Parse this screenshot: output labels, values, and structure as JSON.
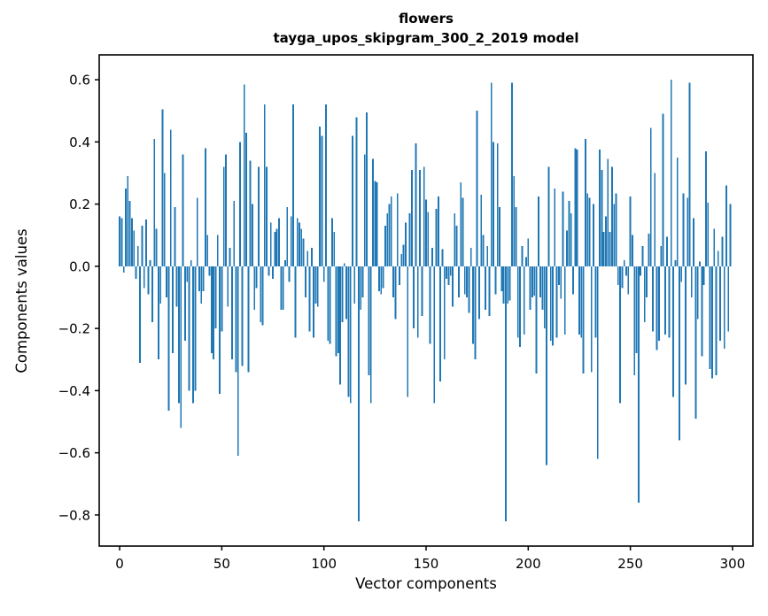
{
  "figure": {
    "background": "#ffffff",
    "axes_color": "#000000"
  },
  "chart_data": {
    "type": "bar",
    "title_lines": [
      "flowers",
      "tayga_upos_skipgram_300_2_2019 model"
    ],
    "xlabel": "Vector components",
    "ylabel": "Components values",
    "legend": null,
    "grid": false,
    "bar_color": "#1f77b4",
    "bar_width_units": 0.8,
    "x_start": 0,
    "xlim": [
      -10,
      310
    ],
    "ylim": [
      -0.9,
      0.68
    ],
    "xticks": [
      0,
      50,
      100,
      150,
      200,
      250,
      300
    ],
    "yticks": [
      0.6,
      0.4,
      0.2,
      0.0,
      -0.2,
      -0.4,
      -0.6,
      -0.8
    ],
    "values": [
      0.16,
      0.155,
      -0.02,
      0.25,
      0.29,
      0.21,
      0.155,
      0.115,
      -0.04,
      0.065,
      -0.31,
      0.13,
      -0.07,
      0.15,
      -0.09,
      0.02,
      -0.18,
      0.41,
      0.12,
      -0.3,
      -0.12,
      0.505,
      0.3,
      -0.1,
      -0.465,
      0.44,
      -0.28,
      0.19,
      -0.13,
      -0.44,
      -0.52,
      0.36,
      -0.24,
      -0.05,
      -0.4,
      0.02,
      -0.44,
      -0.4,
      0.22,
      -0.08,
      -0.12,
      -0.08,
      0.38,
      0.1,
      -0.03,
      -0.28,
      -0.3,
      -0.2,
      0.1,
      -0.41,
      -0.21,
      0.32,
      0.36,
      -0.13,
      0.06,
      -0.3,
      0.21,
      -0.34,
      -0.61,
      0.4,
      -0.32,
      0.585,
      0.43,
      -0.34,
      0.34,
      0.2,
      -0.14,
      -0.07,
      0.32,
      -0.18,
      -0.19,
      0.52,
      0.32,
      -0.03,
      0.14,
      -0.04,
      0.11,
      0.12,
      0.155,
      -0.14,
      -0.14,
      0.02,
      0.19,
      -0.05,
      0.16,
      0.52,
      -0.23,
      0.155,
      0.14,
      0.12,
      0.09,
      -0.1,
      0.05,
      -0.21,
      0.06,
      -0.23,
      -0.12,
      -0.13,
      0.45,
      0.42,
      -0.05,
      0.52,
      -0.24,
      -0.25,
      0.155,
      0.11,
      -0.29,
      -0.28,
      -0.38,
      -0.18,
      0.01,
      -0.17,
      -0.42,
      -0.44,
      0.42,
      -0.12,
      0.48,
      -0.82,
      -0.14,
      -0.1,
      0.36,
      0.495,
      -0.35,
      -0.44,
      0.345,
      0.275,
      0.27,
      -0.08,
      -0.09,
      -0.07,
      0.13,
      0.17,
      0.2,
      0.225,
      -0.1,
      -0.17,
      0.235,
      -0.06,
      0.04,
      0.07,
      0.14,
      -0.42,
      0.17,
      0.31,
      -0.2,
      0.395,
      -0.23,
      0.31,
      -0.16,
      0.32,
      0.215,
      0.175,
      -0.25,
      0.06,
      -0.44,
      0.185,
      0.225,
      -0.37,
      0.055,
      -0.3,
      -0.04,
      -0.06,
      -0.03,
      -0.13,
      0.17,
      0.13,
      -0.1,
      0.27,
      0.22,
      -0.09,
      -0.1,
      -0.15,
      0.06,
      -0.25,
      -0.3,
      0.5,
      -0.17,
      0.23,
      0.1,
      -0.14,
      0.065,
      -0.16,
      0.59,
      0.4,
      -0.09,
      0.395,
      0.19,
      -0.08,
      -0.12,
      -0.82,
      -0.12,
      -0.11,
      0.59,
      0.29,
      0.19,
      -0.23,
      -0.26,
      0.065,
      -0.22,
      0.03,
      0.09,
      -0.14,
      -0.1,
      -0.095,
      -0.345,
      0.225,
      -0.1,
      -0.14,
      -0.2,
      -0.64,
      0.32,
      -0.24,
      -0.255,
      0.25,
      -0.23,
      -0.06,
      -0.105,
      0.24,
      -0.22,
      0.115,
      0.21,
      0.17,
      -0.09,
      0.38,
      0.375,
      -0.22,
      -0.23,
      -0.345,
      0.41,
      0.235,
      0.22,
      -0.34,
      0.2,
      -0.23,
      -0.62,
      0.375,
      0.31,
      0.11,
      0.16,
      0.345,
      0.11,
      0.32,
      0.2,
      0.235,
      -0.06,
      -0.44,
      -0.07,
      0.02,
      -0.03,
      -0.09,
      0.225,
      0.1,
      -0.35,
      -0.28,
      -0.76,
      -0.03,
      0.065,
      -0.18,
      -0.1,
      0.105,
      0.445,
      -0.21,
      0.3,
      -0.27,
      -0.24,
      0.065,
      0.49,
      -0.22,
      0.095,
      -0.23,
      0.6,
      -0.42,
      0.02,
      0.35,
      -0.56,
      -0.05,
      0.235,
      -0.38,
      0.22,
      0.59,
      -0.1,
      0.155,
      -0.49,
      -0.17,
      0.015,
      -0.29,
      -0.06,
      0.37,
      0.205,
      -0.33,
      -0.36,
      0.12,
      -0.35,
      0.05,
      -0.24,
      0.095,
      -0.265,
      0.26,
      -0.21,
      0.2
    ]
  }
}
